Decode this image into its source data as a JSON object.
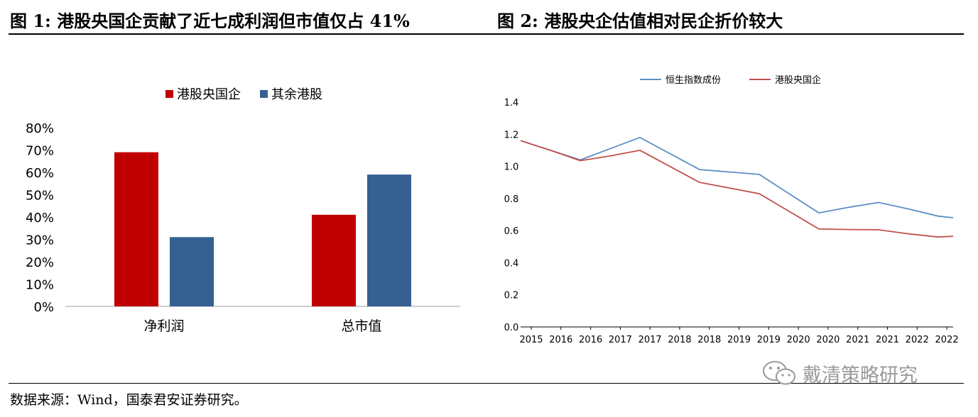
{
  "figure1": {
    "title": "图 1: 港股央国企贡献了近七成利润但市值仅占 41%"
  },
  "figure2": {
    "title": "图 2: 港股央企估值相对民企折价较大"
  },
  "source_note": "数据来源：Wind，国泰君安证券研究。",
  "watermark": "戴清策略研究",
  "colors": {
    "red": "#c00000",
    "blue": "#376092",
    "line_blue": "#5b8ec6",
    "line_red": "#c0504d"
  },
  "chart_data": [
    {
      "type": "bar",
      "categories": [
        "净利润",
        "总市值"
      ],
      "series": [
        {
          "name": "港股央国企",
          "values": [
            69,
            41
          ]
        },
        {
          "name": "其余港股",
          "values": [
            31,
            59
          ]
        }
      ],
      "ylim": [
        0,
        80
      ],
      "yticks": [
        "0%",
        "10%",
        "20%",
        "30%",
        "40%",
        "50%",
        "60%",
        "70%",
        "80%"
      ],
      "legend": "top",
      "grid": false
    },
    {
      "type": "line",
      "x": [
        2015.0,
        2015.5,
        2016.0,
        2016.5,
        2017.0,
        2017.5,
        2018.0,
        2018.5,
        2019.0,
        2019.5,
        2020.0,
        2020.5,
        2021.0,
        2021.5,
        2022.0,
        2022.25
      ],
      "series": [
        {
          "name": "恒生指数成份",
          "values": [
            1.16,
            1.1,
            1.04,
            1.11,
            1.18,
            1.08,
            0.98,
            0.965,
            0.95,
            0.83,
            0.71,
            0.745,
            0.775,
            0.735,
            0.69,
            0.68
          ]
        },
        {
          "name": "港股央国企",
          "values": [
            1.16,
            1.1,
            1.035,
            1.065,
            1.1,
            1.0,
            0.9,
            0.865,
            0.83,
            0.72,
            0.61,
            0.607,
            0.605,
            0.58,
            0.56,
            0.565
          ]
        }
      ],
      "xticks": [
        "2015",
        "2016",
        "2016",
        "2017",
        "2017",
        "2018",
        "2018",
        "2019",
        "2019",
        "2020",
        "2020",
        "2021",
        "2021",
        "2022",
        "2022"
      ],
      "yticks": [
        "0.0",
        "0.2",
        "0.4",
        "0.6",
        "0.8",
        "1.0",
        "1.2",
        "1.4"
      ],
      "ylim": [
        0,
        1.4
      ],
      "legend": "top",
      "grid": false
    }
  ]
}
